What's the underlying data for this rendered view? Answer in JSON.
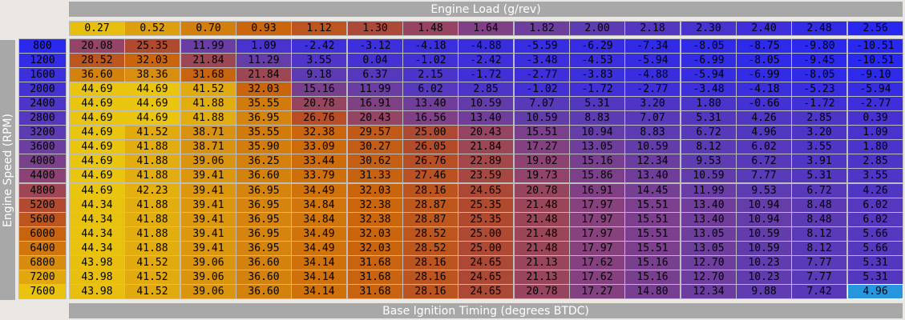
{
  "x_axis": {
    "title": "Engine Load (g/rev)",
    "values": [
      "0.27",
      "0.52",
      "0.70",
      "0.93",
      "1.12",
      "1.30",
      "1.48",
      "1.64",
      "1.82",
      "2.00",
      "2.18",
      "2.30",
      "2.40",
      "2.48",
      "2.56"
    ]
  },
  "y_axis": {
    "title": "Engine Speed (RPM)",
    "values": [
      "800",
      "1200",
      "1600",
      "2000",
      "2400",
      "2800",
      "3200",
      "3600",
      "4000",
      "4400",
      "4800",
      "5200",
      "5600",
      "6000",
      "6400",
      "6800",
      "7200",
      "7600"
    ]
  },
  "footer": {
    "title": "Base Ignition Timing (degrees BTDC)"
  },
  "selected_cell": {
    "row": 17,
    "col": 14
  },
  "table": [
    [
      "20.08",
      "25.35",
      "11.99",
      "1.09",
      "-2.42",
      "-3.12",
      "-4.18",
      "-4.88",
      "-5.59",
      "-6.29",
      "-7.34",
      "-8.05",
      "-8.75",
      "-9.80",
      "-10.51"
    ],
    [
      "28.52",
      "32.03",
      "21.84",
      "11.29",
      "3.55",
      "0.04",
      "-1.02",
      "-2.42",
      "-3.48",
      "-4.53",
      "-5.94",
      "-6.99",
      "-8.05",
      "-9.45",
      "-10.51"
    ],
    [
      "36.60",
      "38.36",
      "31.68",
      "21.84",
      "9.18",
      "6.37",
      "2.15",
      "-1.72",
      "-2.77",
      "-3.83",
      "-4.88",
      "-5.94",
      "-6.99",
      "-8.05",
      "-9.10"
    ],
    [
      "44.69",
      "44.69",
      "41.52",
      "32.03",
      "15.16",
      "11.99",
      "6.02",
      "2.85",
      "-1.02",
      "-1.72",
      "-2.77",
      "-3.48",
      "-4.18",
      "-5.23",
      "-5.94"
    ],
    [
      "44.69",
      "44.69",
      "41.88",
      "35.55",
      "20.78",
      "16.91",
      "13.40",
      "10.59",
      "7.07",
      "5.31",
      "3.20",
      "1.80",
      "-0.66",
      "-1.72",
      "-2.77"
    ],
    [
      "44.69",
      "44.69",
      "41.88",
      "36.95",
      "26.76",
      "20.43",
      "16.56",
      "13.40",
      "10.59",
      "8.83",
      "7.07",
      "5.31",
      "4.26",
      "2.85",
      "0.39"
    ],
    [
      "44.69",
      "41.52",
      "38.71",
      "35.55",
      "32.38",
      "29.57",
      "25.00",
      "20.43",
      "15.51",
      "10.94",
      "8.83",
      "6.72",
      "4.96",
      "3.20",
      "1.09"
    ],
    [
      "44.69",
      "41.88",
      "38.71",
      "35.90",
      "33.09",
      "30.27",
      "26.05",
      "21.84",
      "17.27",
      "13.05",
      "10.59",
      "8.12",
      "6.02",
      "3.55",
      "1.80"
    ],
    [
      "44.69",
      "41.88",
      "39.06",
      "36.25",
      "33.44",
      "30.62",
      "26.76",
      "22.89",
      "19.02",
      "15.16",
      "12.34",
      "9.53",
      "6.72",
      "3.91",
      "2.85"
    ],
    [
      "44.69",
      "41.88",
      "39.41",
      "36.60",
      "33.79",
      "31.33",
      "27.46",
      "23.59",
      "19.73",
      "15.86",
      "13.40",
      "10.59",
      "7.77",
      "5.31",
      "3.55"
    ],
    [
      "44.69",
      "42.23",
      "39.41",
      "36.95",
      "34.49",
      "32.03",
      "28.16",
      "24.65",
      "20.78",
      "16.91",
      "14.45",
      "11.99",
      "9.53",
      "6.72",
      "4.26"
    ],
    [
      "44.34",
      "41.88",
      "39.41",
      "36.95",
      "34.84",
      "32.38",
      "28.87",
      "25.35",
      "21.48",
      "17.97",
      "15.51",
      "13.40",
      "10.94",
      "8.48",
      "6.02"
    ],
    [
      "44.34",
      "41.88",
      "39.41",
      "36.95",
      "34.84",
      "32.38",
      "28.87",
      "25.35",
      "21.48",
      "17.97",
      "15.51",
      "13.40",
      "10.94",
      "8.48",
      "6.02"
    ],
    [
      "44.34",
      "41.88",
      "39.41",
      "36.95",
      "34.49",
      "32.03",
      "28.52",
      "25.00",
      "21.48",
      "17.97",
      "15.51",
      "13.05",
      "10.59",
      "8.12",
      "5.66"
    ],
    [
      "44.34",
      "41.88",
      "39.41",
      "36.95",
      "34.49",
      "32.03",
      "28.52",
      "25.00",
      "21.48",
      "17.97",
      "15.51",
      "13.05",
      "10.59",
      "8.12",
      "5.66"
    ],
    [
      "43.98",
      "41.52",
      "39.06",
      "36.60",
      "34.14",
      "31.68",
      "28.16",
      "24.65",
      "21.13",
      "17.62",
      "15.16",
      "12.70",
      "10.23",
      "7.77",
      "5.31"
    ],
    [
      "43.98",
      "41.52",
      "39.06",
      "36.60",
      "34.14",
      "31.68",
      "28.16",
      "24.65",
      "21.13",
      "17.62",
      "15.16",
      "12.70",
      "10.23",
      "7.77",
      "5.31"
    ],
    [
      "43.98",
      "41.52",
      "39.06",
      "36.60",
      "34.14",
      "31.68",
      "28.16",
      "24.65",
      "20.78",
      "17.27",
      "14.80",
      "12.34",
      "9.88",
      "7.42",
      "4.96"
    ]
  ]
}
